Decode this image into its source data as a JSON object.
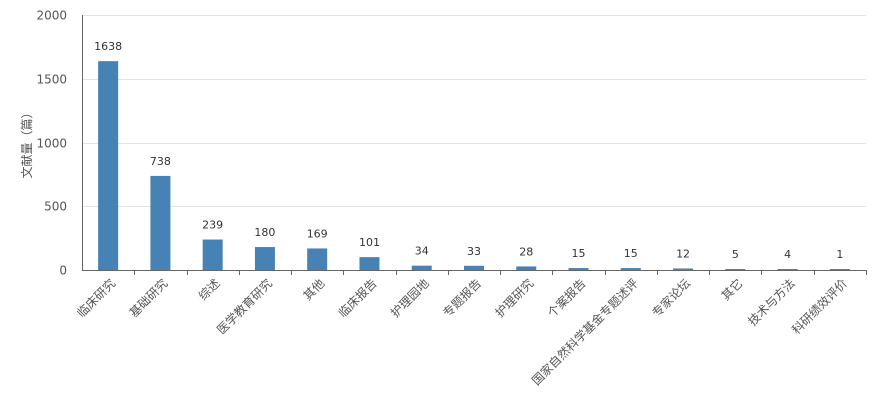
{
  "chart_data": {
    "type": "bar",
    "ylabel": "文献量（篇）",
    "xlabel": "",
    "ylim": [
      0,
      2000
    ],
    "yticks": [
      0,
      500,
      1000,
      1500,
      2000
    ],
    "grid": true,
    "bar_color": "#4682b4",
    "categories": [
      "临床研究",
      "基础研究",
      "综述",
      "医学教育研究",
      "其他",
      "临床报告",
      "护理园地",
      "专题报告",
      "护理研究",
      "个案报告",
      "国家自然科学基金专题述评",
      "专家论坛",
      "其它",
      "技术与方法",
      "科研绩效评价"
    ],
    "values": [
      1638,
      738,
      239,
      180,
      169,
      101,
      34,
      33,
      28,
      15,
      15,
      12,
      5,
      4,
      1
    ]
  }
}
